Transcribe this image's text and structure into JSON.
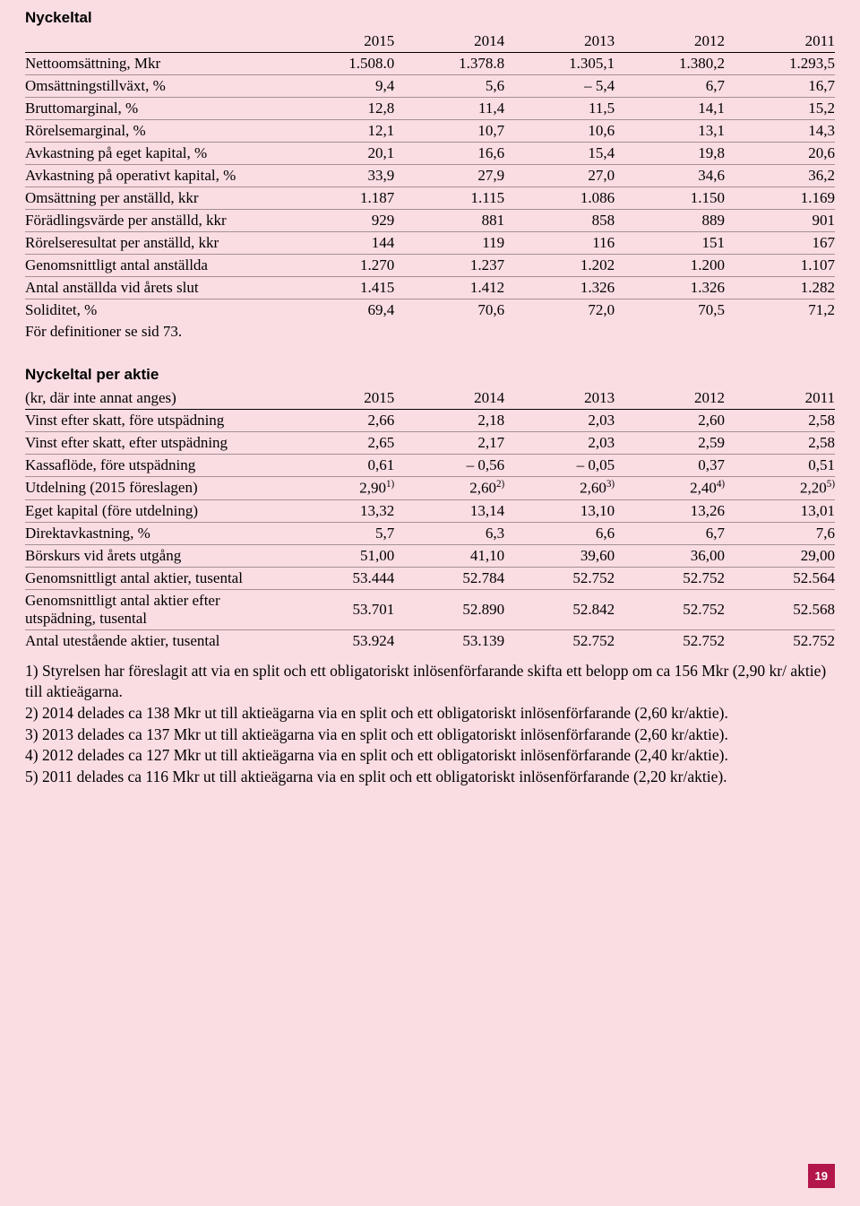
{
  "colors": {
    "background": "#fadde3",
    "rule": "#000000",
    "rule_light": "rgba(0,0,0,0.35)",
    "pagenum_bg": "#b2164a",
    "pagenum_fg": "#ffffff"
  },
  "tableA": {
    "title": "Nyckeltal",
    "years": [
      "2015",
      "2014",
      "2013",
      "2012",
      "2011"
    ],
    "rows": [
      {
        "label": "Nettoomsättning, Mkr",
        "vals": [
          "1.508.0",
          "1.378.8",
          "1.305,1",
          "1.380,2",
          "1.293,5"
        ]
      },
      {
        "label": "Omsättningstillväxt, %",
        "vals": [
          "9,4",
          "5,6",
          "– 5,4",
          "6,7",
          "16,7"
        ]
      },
      {
        "label": "Bruttomarginal, %",
        "vals": [
          "12,8",
          "11,4",
          "11,5",
          "14,1",
          "15,2"
        ]
      },
      {
        "label": "Rörelsemarginal, %",
        "vals": [
          "12,1",
          "10,7",
          "10,6",
          "13,1",
          "14,3"
        ]
      },
      {
        "label": "Avkastning på eget kapital, %",
        "vals": [
          "20,1",
          "16,6",
          "15,4",
          "19,8",
          "20,6"
        ]
      },
      {
        "label": "Avkastning på operativt kapital, %",
        "vals": [
          "33,9",
          "27,9",
          "27,0",
          "34,6",
          "36,2"
        ]
      },
      {
        "label": "Omsättning per anställd, kkr",
        "vals": [
          "1.187",
          "1.115",
          "1.086",
          "1.150",
          "1.169"
        ]
      },
      {
        "label": "Förädlingsvärde per anställd, kkr",
        "vals": [
          "929",
          "881",
          "858",
          "889",
          "901"
        ]
      },
      {
        "label": "Rörelseresultat per anställd, kkr",
        "vals": [
          "144",
          "119",
          "116",
          "151",
          "167"
        ]
      },
      {
        "label": "Genomsnittligt antal anställda",
        "vals": [
          "1.270",
          "1.237",
          "1.202",
          "1.200",
          "1.107"
        ]
      },
      {
        "label": "Antal anställda vid årets slut",
        "vals": [
          "1.415",
          "1.412",
          "1.326",
          "1.326",
          "1.282"
        ]
      },
      {
        "label": "Soliditet, %",
        "vals": [
          "69,4",
          "70,6",
          "72,0",
          "70,5",
          "71,2"
        ]
      }
    ],
    "note": "För definitioner se sid 73."
  },
  "tableB": {
    "title": "Nyckeltal per aktie",
    "subhead": "(kr, där inte annat anges)",
    "years": [
      "2015",
      "2014",
      "2013",
      "2012",
      "2011"
    ],
    "rows": [
      {
        "label": "Vinst efter skatt, före utspädning",
        "vals": [
          "2,66",
          "2,18",
          "2,03",
          "2,60",
          "2,58"
        ]
      },
      {
        "label": "Vinst efter skatt, efter utspädning",
        "vals": [
          "2,65",
          "2,17",
          "2,03",
          "2,59",
          "2,58"
        ]
      },
      {
        "label": "Kassaflöde, före utspädning",
        "vals": [
          "0,61",
          "– 0,56",
          "– 0,05",
          "0,37",
          "0,51"
        ]
      },
      {
        "label": "Utdelning (2015 föreslagen)",
        "vals": [
          "2,90",
          "2,60",
          "2,60",
          "2,40",
          "2,20"
        ],
        "sups": [
          "1)",
          "2)",
          "3)",
          "4)",
          "5)"
        ]
      },
      {
        "label": "Eget kapital (före utdelning)",
        "vals": [
          "13,32",
          "13,14",
          "13,10",
          "13,26",
          "13,01"
        ]
      },
      {
        "label": "Direktavkastning, %",
        "vals": [
          "5,7",
          "6,3",
          "6,6",
          "6,7",
          "7,6"
        ]
      },
      {
        "label": "Börskurs vid årets utgång",
        "vals": [
          "51,00",
          "41,10",
          "39,60",
          "36,00",
          "29,00"
        ]
      },
      {
        "label": "Genomsnittligt antal aktier, tusental",
        "vals": [
          "53.444",
          "52.784",
          "52.752",
          "52.752",
          "52.564"
        ]
      },
      {
        "label": "Genomsnittligt antal aktier efter utspädning, tusental",
        "vals": [
          "53.701",
          "52.890",
          "52.842",
          "52.752",
          "52.568"
        ]
      },
      {
        "label": "Antal utestående aktier, tusental",
        "vals": [
          "53.924",
          "53.139",
          "52.752",
          "52.752",
          "52.752"
        ]
      }
    ]
  },
  "footnotes": [
    "1) Styrelsen har föreslagit att via en split och ett obligatoriskt inlösenförfarande skifta ett belopp om ca 156 Mkr (2,90 kr/ aktie) till aktieägarna.",
    "2) 2014 delades ca 138 Mkr ut till aktieägarna via en split och ett obligatoriskt inlösenförfarande (2,60 kr/aktie).",
    "3) 2013 delades ca 137 Mkr ut till aktieägarna via en split och ett obligatoriskt inlösenförfarande (2,60 kr/aktie).",
    "4) 2012 delades ca 127 Mkr ut till aktieägarna via en split och ett obligatoriskt inlösenförfarande (2,40 kr/aktie).",
    "5) 2011 delades ca 116 Mkr ut till aktieägarna via en split och ett obligatoriskt inlösenförfarande (2,20 kr/aktie)."
  ],
  "page_number": "19"
}
